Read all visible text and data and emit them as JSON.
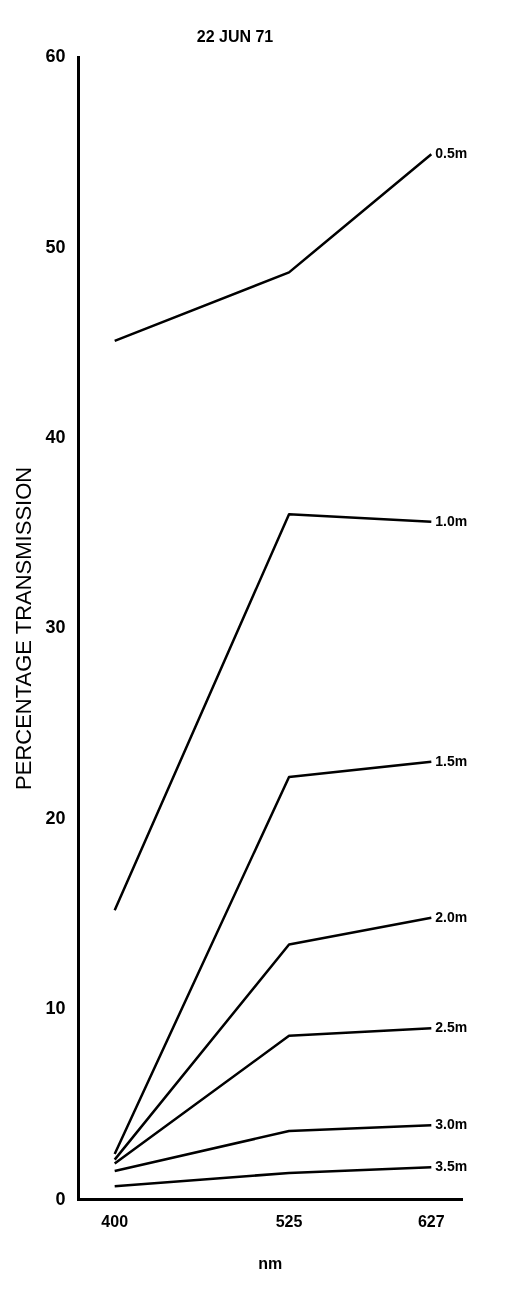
{
  "chart_data": {
    "type": "line",
    "title": "22 JUN 71",
    "xlabel": "nm",
    "ylabel": "PERCENTAGE TRANSMISSION",
    "x": [
      400,
      525,
      627
    ],
    "xlim": [
      374,
      649
    ],
    "xticks": [
      400,
      525,
      627
    ],
    "ylim": [
      0,
      60
    ],
    "yticks": [
      0,
      10,
      20,
      30,
      40,
      50,
      60
    ],
    "grid": false,
    "legend": false,
    "marker": "none",
    "line_style": "solid",
    "series": [
      {
        "name": "0.5m",
        "color": "#000000",
        "values": [
          45.1,
          48.7,
          54.9
        ]
      },
      {
        "name": "1.0m",
        "color": "#000000",
        "values": [
          15.2,
          36.0,
          35.6
        ]
      },
      {
        "name": "1.5m",
        "color": "#000000",
        "values": [
          2.4,
          22.2,
          23.0
        ]
      },
      {
        "name": "2.0m",
        "color": "#000000",
        "values": [
          2.1,
          13.4,
          14.8
        ]
      },
      {
        "name": "2.5m",
        "color": "#000000",
        "values": [
          1.9,
          8.6,
          9.0
        ]
      },
      {
        "name": "3.0m",
        "color": "#000000",
        "values": [
          1.5,
          3.6,
          3.9
        ]
      },
      {
        "name": "3.5m",
        "color": "#000000",
        "values": [
          0.7,
          1.4,
          1.7
        ]
      }
    ]
  }
}
